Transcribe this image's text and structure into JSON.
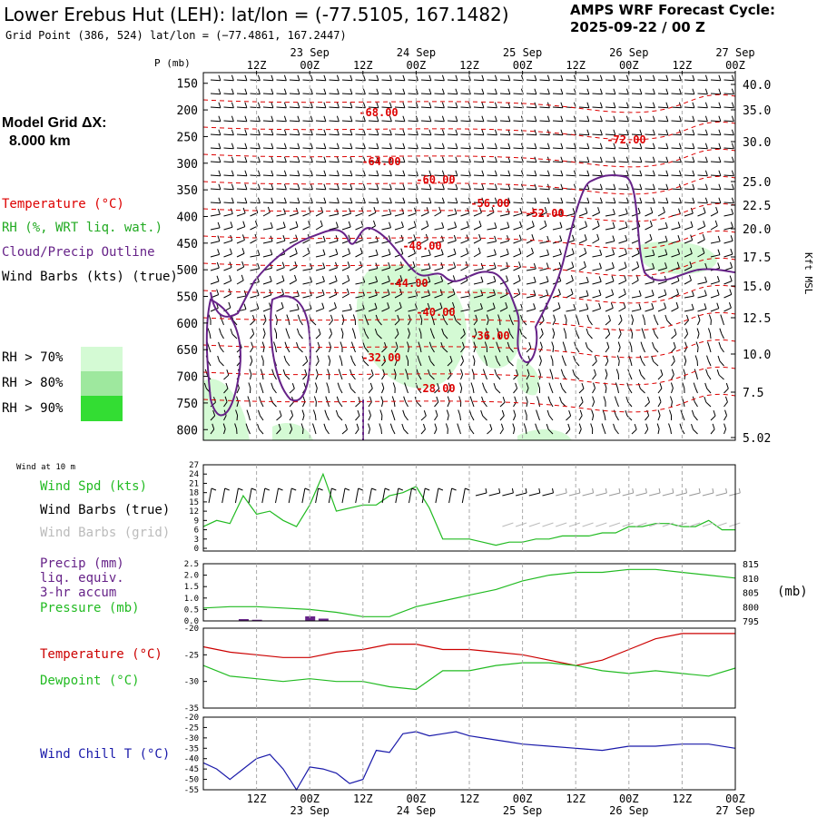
{
  "header": {
    "title": "Lower Erebus Hut (LEH):  lat/lon = (-77.5105, 167.1482)",
    "grid_point": "Grid Point (386, 524) lat/lon = (−77.4861, 167.2447)",
    "cycle_line1": "AMPS WRF Forecast Cycle:",
    "cycle_line2": "2025-09-22 / 00  Z"
  },
  "model_grid": {
    "label": "Model Grid ΔX:",
    "value": "8.000 km"
  },
  "legend": {
    "temperature": "Temperature (°C)",
    "rh": "RH (%, WRT liq. wat.)",
    "cloud": "Cloud/Precip Outline",
    "wind_barbs": "Wind Barbs (kts) (true)",
    "rh70": "RH > 70%",
    "rh80": "RH > 80%",
    "rh90": "RH > 90%",
    "colors": {
      "temperature": "#dd0000",
      "rh70": "#d4fad4",
      "rh80": "#9ee89e",
      "rh90": "#33dd33",
      "cloud": "#662288"
    }
  },
  "axes": {
    "p_label": "P (mb)",
    "kft_label": "Kft MSL",
    "top_hours": [
      "12Z",
      "00Z",
      "12Z",
      "00Z",
      "12Z",
      "00Z",
      "12Z",
      "00Z",
      "12Z",
      "00Z"
    ],
    "top_dates": [
      "23 Sep",
      "24 Sep",
      "25 Sep",
      "26 Sep",
      "27 Sep"
    ],
    "bottom_hours": [
      "12Z",
      "00Z",
      "12Z",
      "00Z",
      "12Z",
      "00Z",
      "12Z",
      "00Z",
      "12Z",
      "00Z"
    ],
    "bottom_dates": [
      "23 Sep",
      "24 Sep",
      "25 Sep",
      "26 Sep",
      "27 Sep"
    ],
    "pressure_levels": [
      "150",
      "200",
      "250",
      "300",
      "350",
      "400",
      "450",
      "500",
      "550",
      "600",
      "650",
      "700",
      "750",
      "800"
    ],
    "kft_levels": [
      "40.0",
      "35.0",
      "30.0",
      "25.0",
      "22.5",
      "20.0",
      "17.5",
      "15.0",
      "12.5",
      "10.0",
      "7.5",
      "5.02"
    ]
  },
  "wind10": {
    "title": "Wind at 10 m",
    "spd_label": "Wind Spd (kts)",
    "barbs_true": "Wind Barbs (true)",
    "barbs_grid": "Wind Barbs (grid)",
    "yticks": [
      "27",
      "24",
      "21",
      "18",
      "15",
      "12",
      "9",
      "6",
      "3",
      "0"
    ],
    "spd_color": "#22bb22"
  },
  "precip": {
    "label1": "Precip (mm)",
    "label2": "liq. equiv.",
    "label3": "3-hr accum",
    "label4": "Pressure (mb)",
    "units": "(mb)",
    "left_ticks": [
      "2.5",
      "2.0",
      "1.5",
      "1.0",
      "0.5",
      "0.0"
    ],
    "right_ticks": [
      "815",
      "810",
      "805",
      "800",
      "795"
    ],
    "precip_color": "#662288",
    "pressure_color": "#22bb22"
  },
  "temp_panel": {
    "temp_label": "Temperature (°C)",
    "dew_label": "Dewpoint (°C)",
    "ticks": [
      "-20",
      "-25",
      "-30",
      "-35"
    ],
    "temp_color": "#cc0000",
    "dew_color": "#22bb22"
  },
  "chill_panel": {
    "label": "Wind Chill T (°C)",
    "ticks": [
      "-20",
      "-25",
      "-30",
      "-35",
      "-40",
      "-45",
      "-50",
      "-55"
    ],
    "color": "#1a1aaa"
  },
  "upper_contours": {
    "labels": [
      "-68.00",
      "-64.00",
      "-60.00",
      "-56.00",
      "-52.00",
      "-48.00",
      "-44.00",
      "-40.00",
      "-36.00",
      "-32.00",
      "-28.00",
      "-72.00"
    ]
  },
  "chart_data": [
    {
      "type": "line",
      "title": "Wind Spd (kts)",
      "x_hours": [
        0,
        3,
        6,
        9,
        12,
        15,
        18,
        21,
        24,
        27,
        30,
        33,
        36,
        39,
        42,
        45,
        48,
        51,
        54,
        57,
        60,
        63,
        66,
        69,
        72,
        75,
        78,
        81,
        84,
        87,
        90,
        93,
        96,
        99,
        102,
        105,
        108,
        111,
        114,
        117,
        120
      ],
      "series": [
        {
          "name": "Wind Spd (kts)",
          "values": [
            7,
            9,
            8,
            17,
            11,
            12,
            9,
            7,
            14,
            24,
            12,
            13,
            14,
            14,
            17,
            18,
            20,
            13,
            3,
            3,
            3,
            2,
            1,
            2,
            2,
            3,
            3,
            4,
            4,
            4,
            5,
            5,
            7,
            7,
            8,
            8,
            7,
            7,
            9,
            6,
            6
          ]
        }
      ],
      "ylim": [
        0,
        27
      ]
    },
    {
      "type": "line",
      "title": "Pressure (mb)",
      "x_hours": [
        0,
        6,
        12,
        18,
        24,
        30,
        36,
        42,
        48,
        54,
        60,
        66,
        72,
        78,
        84,
        90,
        96,
        102,
        108,
        114,
        120
      ],
      "series": [
        {
          "name": "Pressure (mb)",
          "values": [
            799.5,
            800,
            800,
            799.5,
            799,
            798,
            796.5,
            796.5,
            800,
            802,
            804,
            806,
            809,
            811,
            812,
            812,
            813,
            813,
            812,
            811,
            810
          ]
        }
      ],
      "ylim": [
        795,
        815
      ]
    },
    {
      "type": "bar",
      "title": "Precip (mm)",
      "x_hours": [
        9,
        12,
        15,
        24,
        27,
        30
      ],
      "values": [
        0.08,
        0.05,
        0.02,
        0.2,
        0.1,
        0.02
      ],
      "ylim": [
        0,
        2.5
      ]
    },
    {
      "type": "line",
      "title": "Temperature / Dewpoint (°C)",
      "x_hours": [
        0,
        6,
        12,
        18,
        24,
        30,
        36,
        42,
        48,
        54,
        60,
        66,
        72,
        78,
        84,
        90,
        96,
        102,
        108,
        114,
        120
      ],
      "series": [
        {
          "name": "Temperature (°C)",
          "values": [
            -23.5,
            -24.5,
            -25,
            -25.5,
            -25.5,
            -24.5,
            -24,
            -23,
            -23,
            -24,
            -24,
            -24.5,
            -25,
            -26,
            -27,
            -26,
            -24,
            -22,
            -21,
            -21,
            -21
          ]
        },
        {
          "name": "Dewpoint (°C)",
          "values": [
            -27,
            -29,
            -29.5,
            -30,
            -29.5,
            -30,
            -30,
            -31,
            -31.5,
            -28,
            -28,
            -27,
            -26.5,
            -26.5,
            -27,
            -28,
            -28.5,
            -28,
            -28.5,
            -29,
            -27.5
          ]
        }
      ],
      "ylim": [
        -35,
        -20
      ]
    },
    {
      "type": "line",
      "title": "Wind Chill T (°C)",
      "x_hours": [
        0,
        3,
        6,
        9,
        12,
        15,
        18,
        21,
        24,
        27,
        30,
        33,
        36,
        39,
        42,
        45,
        48,
        51,
        54,
        57,
        60,
        63,
        66,
        69,
        72,
        78,
        84,
        90,
        96,
        102,
        108,
        114,
        120
      ],
      "series": [
        {
          "name": "Wind Chill T (°C)",
          "values": [
            -42,
            -45,
            -50,
            -45,
            -40,
            -38,
            -45,
            -55,
            -44,
            -45,
            -47,
            -52,
            -50,
            -36,
            -37,
            -28,
            -27,
            -29,
            -28,
            -27,
            -29,
            -30,
            -31,
            -32,
            -33,
            -34,
            -35,
            -36,
            -34,
            -34,
            -33,
            -33,
            -35
          ]
        }
      ],
      "ylim": [
        -55,
        -20
      ]
    }
  ]
}
